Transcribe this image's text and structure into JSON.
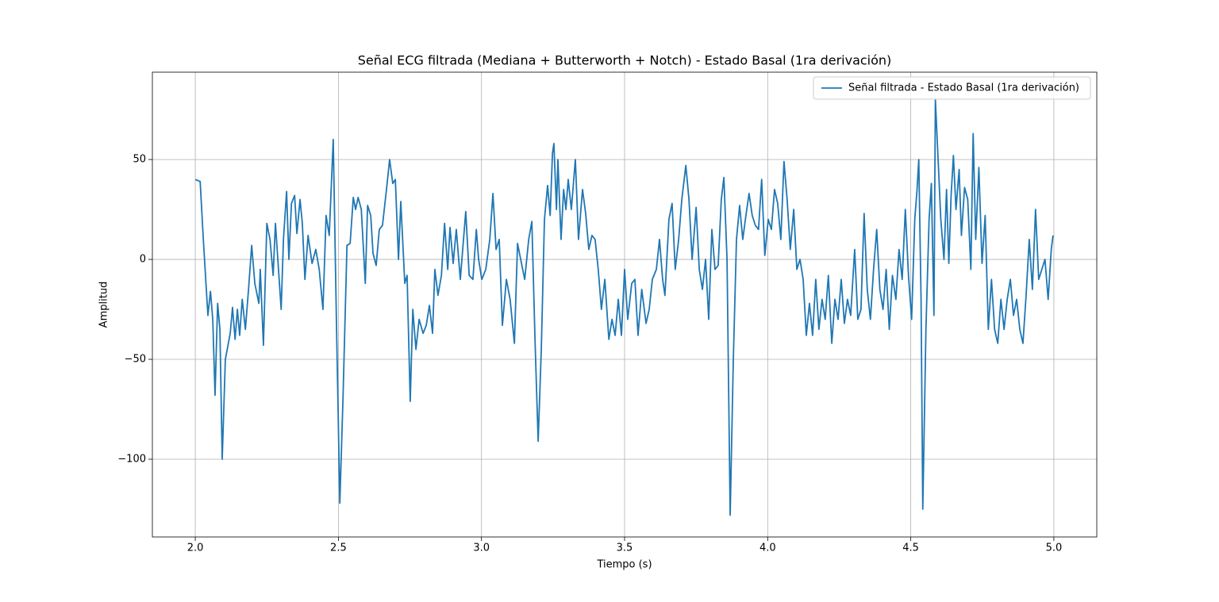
{
  "chart_data": {
    "type": "line",
    "title": "Señal ECG filtrada (Mediana + Butterworth + Notch) - Estado Basal (1ra derivación)",
    "xlabel": "Tiempo (s)",
    "ylabel": "Amplitud",
    "xlim": [
      1.85,
      5.15
    ],
    "ylim": [
      -138.9,
      93.7
    ],
    "xticks": [
      {
        "value": 2,
        "label": "2.0"
      },
      2.5,
      {
        "value": 3,
        "label": "3.0"
      },
      3.5,
      {
        "value": 4,
        "label": "4.0"
      },
      4.5,
      {
        "value": 5,
        "label": "5.0"
      }
    ],
    "yticks": [
      {
        "value": -100,
        "label": "−100"
      },
      {
        "value": -50,
        "label": "−50"
      },
      0,
      50
    ],
    "grid": true,
    "legend": "upper right",
    "x": [
      2.0,
      2.017,
      2.028,
      2.044,
      2.053,
      2.061,
      2.069,
      2.078,
      2.086,
      2.094,
      2.105,
      2.122,
      2.13,
      2.139,
      2.147,
      2.155,
      2.164,
      2.175,
      2.186,
      2.197,
      2.208,
      2.222,
      2.227,
      2.238,
      2.25,
      2.261,
      2.272,
      2.28,
      2.3,
      2.308,
      2.319,
      2.327,
      2.336,
      2.347,
      2.355,
      2.366,
      2.374,
      2.383,
      2.394,
      2.408,
      2.421,
      2.433,
      2.446,
      2.457,
      2.468,
      2.482,
      2.493,
      2.505,
      2.516,
      2.53,
      2.541,
      2.552,
      2.56,
      2.569,
      2.58,
      2.594,
      2.602,
      2.613,
      2.621,
      2.632,
      2.643,
      2.654,
      2.668,
      2.679,
      2.69,
      2.699,
      2.71,
      2.718,
      2.732,
      2.74,
      2.751,
      2.76,
      2.771,
      2.782,
      2.796,
      2.807,
      2.818,
      2.829,
      2.837,
      2.848,
      2.86,
      2.871,
      2.882,
      2.89,
      2.901,
      2.912,
      2.926,
      2.945,
      2.957,
      2.97,
      2.982,
      2.99,
      3.001,
      3.015,
      3.029,
      3.04,
      3.051,
      3.062,
      3.073,
      3.087,
      3.1,
      3.115,
      3.126,
      3.137,
      3.151,
      3.165,
      3.176,
      3.187,
      3.198,
      3.209,
      3.22,
      3.231,
      3.24,
      3.248,
      3.253,
      3.262,
      3.267,
      3.278,
      3.287,
      3.295,
      3.303,
      3.314,
      3.328,
      3.339,
      3.353,
      3.364,
      3.375,
      3.386,
      3.397,
      3.408,
      3.419,
      3.431,
      3.445,
      3.456,
      3.467,
      3.478,
      3.489,
      3.5,
      3.511,
      3.525,
      3.536,
      3.547,
      3.56,
      3.575,
      3.586,
      3.597,
      3.611,
      3.622,
      3.633,
      3.641,
      3.655,
      3.666,
      3.677,
      3.689,
      3.7,
      3.714,
      3.725,
      3.736,
      3.75,
      3.761,
      3.772,
      3.783,
      3.794,
      3.805,
      3.816,
      3.827,
      3.838,
      3.847,
      3.858,
      3.869,
      3.88,
      3.891,
      3.902,
      3.913,
      3.924,
      3.935,
      3.946,
      3.957,
      3.968,
      3.979,
      3.99,
      4.002,
      4.013,
      4.024,
      4.035,
      4.046,
      4.057,
      4.068,
      4.079,
      4.091,
      4.102,
      4.113,
      4.124,
      4.135,
      4.146,
      4.157,
      4.168,
      4.179,
      4.19,
      4.201,
      4.212,
      4.224,
      4.235,
      4.246,
      4.257,
      4.268,
      4.279,
      4.29,
      4.304,
      4.315,
      4.326,
      4.337,
      4.348,
      4.359,
      4.37,
      4.381,
      4.392,
      4.403,
      4.414,
      4.425,
      4.436,
      4.448,
      4.459,
      4.47,
      4.481,
      4.492,
      4.503,
      4.514,
      4.522,
      4.528,
      4.536,
      4.542,
      4.553,
      4.564,
      4.572,
      4.581,
      4.586,
      4.594,
      4.605,
      4.616,
      4.625,
      4.633,
      4.641,
      4.649,
      4.658,
      4.669,
      4.677,
      4.688,
      4.699,
      4.71,
      4.718,
      4.727,
      4.738,
      4.749,
      4.76,
      4.771,
      4.782,
      4.793,
      4.804,
      4.815,
      4.826,
      4.837,
      4.848,
      4.859,
      4.87,
      4.881,
      4.892,
      4.903,
      4.914,
      4.925,
      4.936,
      4.947,
      4.958,
      4.969,
      4.98,
      4.991,
      4.997
    ],
    "series": [
      {
        "name": "Señal filtrada - Estado Basal (1ra derivación)",
        "color": "#1f77b4",
        "values": [
          40,
          39,
          10,
          -28,
          -16,
          -30,
          -68,
          -22,
          -35,
          -100,
          -50,
          -37,
          -24,
          -40,
          -25,
          -38,
          -20,
          -35,
          -15,
          7,
          -12,
          -22,
          -5,
          -43,
          18,
          10,
          -8,
          18,
          -25,
          10,
          34,
          0,
          28,
          32,
          13,
          30,
          18,
          -10,
          12,
          -2,
          5,
          -5,
          -25,
          22,
          12,
          60,
          -30,
          -122,
          -70,
          7,
          8,
          31,
          25,
          31,
          25,
          -12,
          27,
          22,
          3,
          -3,
          15,
          17,
          35,
          50,
          38,
          40,
          0,
          29,
          -12,
          -8,
          -71,
          -25,
          -45,
          -30,
          -37,
          -33,
          -23,
          -37,
          -5,
          -18,
          -8,
          18,
          -5,
          16,
          -2,
          15,
          -10,
          24,
          -8,
          -10,
          15,
          0,
          -10,
          -5,
          10,
          33,
          5,
          10,
          -33,
          -10,
          -20,
          -42,
          8,
          0,
          -10,
          10,
          19,
          -40,
          -91,
          -45,
          20,
          37,
          22,
          53,
          58,
          25,
          50,
          10,
          35,
          25,
          40,
          25,
          50,
          10,
          35,
          23,
          5,
          12,
          10,
          -5,
          -25,
          -10,
          -40,
          -30,
          -38,
          -20,
          -38,
          -5,
          -30,
          -12,
          -10,
          -38,
          -15,
          -32,
          -25,
          -10,
          -5,
          10,
          -10,
          -18,
          20,
          28,
          -5,
          10,
          30,
          47,
          30,
          0,
          26,
          -5,
          -15,
          0,
          -30,
          15,
          -5,
          -3,
          30,
          41,
          0,
          -128,
          -50,
          10,
          27,
          10,
          22,
          33,
          22,
          17,
          15,
          40,
          2,
          20,
          15,
          35,
          28,
          10,
          49,
          30,
          5,
          25,
          -5,
          0,
          -10,
          -38,
          -22,
          -38,
          -10,
          -35,
          -20,
          -30,
          -8,
          -42,
          -20,
          -30,
          -10,
          -32,
          -20,
          -28,
          5,
          -30,
          -25,
          23,
          -15,
          -30,
          -5,
          15,
          -15,
          -25,
          -5,
          -35,
          -8,
          -20,
          5,
          -10,
          25,
          -8,
          -30,
          20,
          35,
          50,
          -20,
          -125,
          -35,
          20,
          38,
          -28,
          80,
          55,
          20,
          0,
          35,
          -2,
          32,
          52,
          25,
          45,
          12,
          36,
          30,
          -5,
          63,
          10,
          46,
          -2,
          22,
          -35,
          -10,
          -35,
          -42,
          -20,
          -35,
          -20,
          -10,
          -28,
          -20,
          -35,
          -42,
          -18,
          10,
          -15,
          25,
          -10,
          -5,
          0,
          -20,
          5,
          12
        ]
      }
    ]
  }
}
